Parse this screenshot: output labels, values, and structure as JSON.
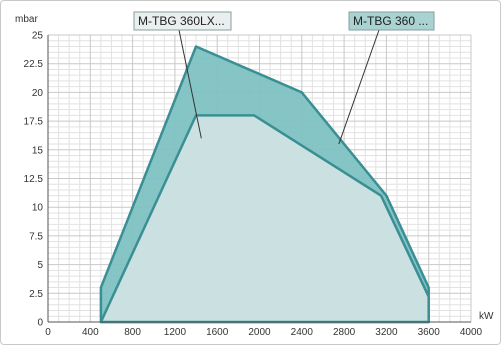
{
  "chart_data": {
    "type": "area",
    "ylabel": "mbar",
    "xlabel": "kW",
    "xlim": [
      0,
      4000
    ],
    "ylim": [
      0,
      25
    ],
    "x_ticks": [
      "0",
      "400",
      "800",
      "1200",
      "1600",
      "2000",
      "2400",
      "2800",
      "3200",
      "3600",
      "4000"
    ],
    "y_ticks": [
      "0",
      "2.5",
      "5",
      "7.5",
      "10",
      "12.5",
      "15",
      "17.5",
      "20",
      "22.5",
      "25"
    ],
    "grid": true,
    "colors": {
      "fill_outer": "#7fc2c2",
      "fill_inner": "#cfe3e3",
      "stroke": "#3a8f94",
      "grid": "#c8c8c8"
    },
    "series": [
      {
        "name": "M-TBG 360 ...",
        "points": [
          [
            500,
            0
          ],
          [
            500,
            3
          ],
          [
            1400,
            24
          ],
          [
            2400,
            20
          ],
          [
            3200,
            11
          ],
          [
            3600,
            3
          ],
          [
            3600,
            0
          ]
        ]
      },
      {
        "name": "M-TBG 360LX...",
        "points": [
          [
            500,
            0
          ],
          [
            1400,
            18
          ],
          [
            1950,
            18
          ],
          [
            3150,
            11
          ],
          [
            3600,
            2.2
          ],
          [
            3600,
            0
          ]
        ]
      }
    ],
    "legend": [
      {
        "label": "M-TBG 360LX...",
        "pointer_to": [
          1450,
          16
        ]
      },
      {
        "label": "M-TBG 360 ...",
        "pointer_to": [
          2750,
          15.5
        ]
      }
    ]
  }
}
